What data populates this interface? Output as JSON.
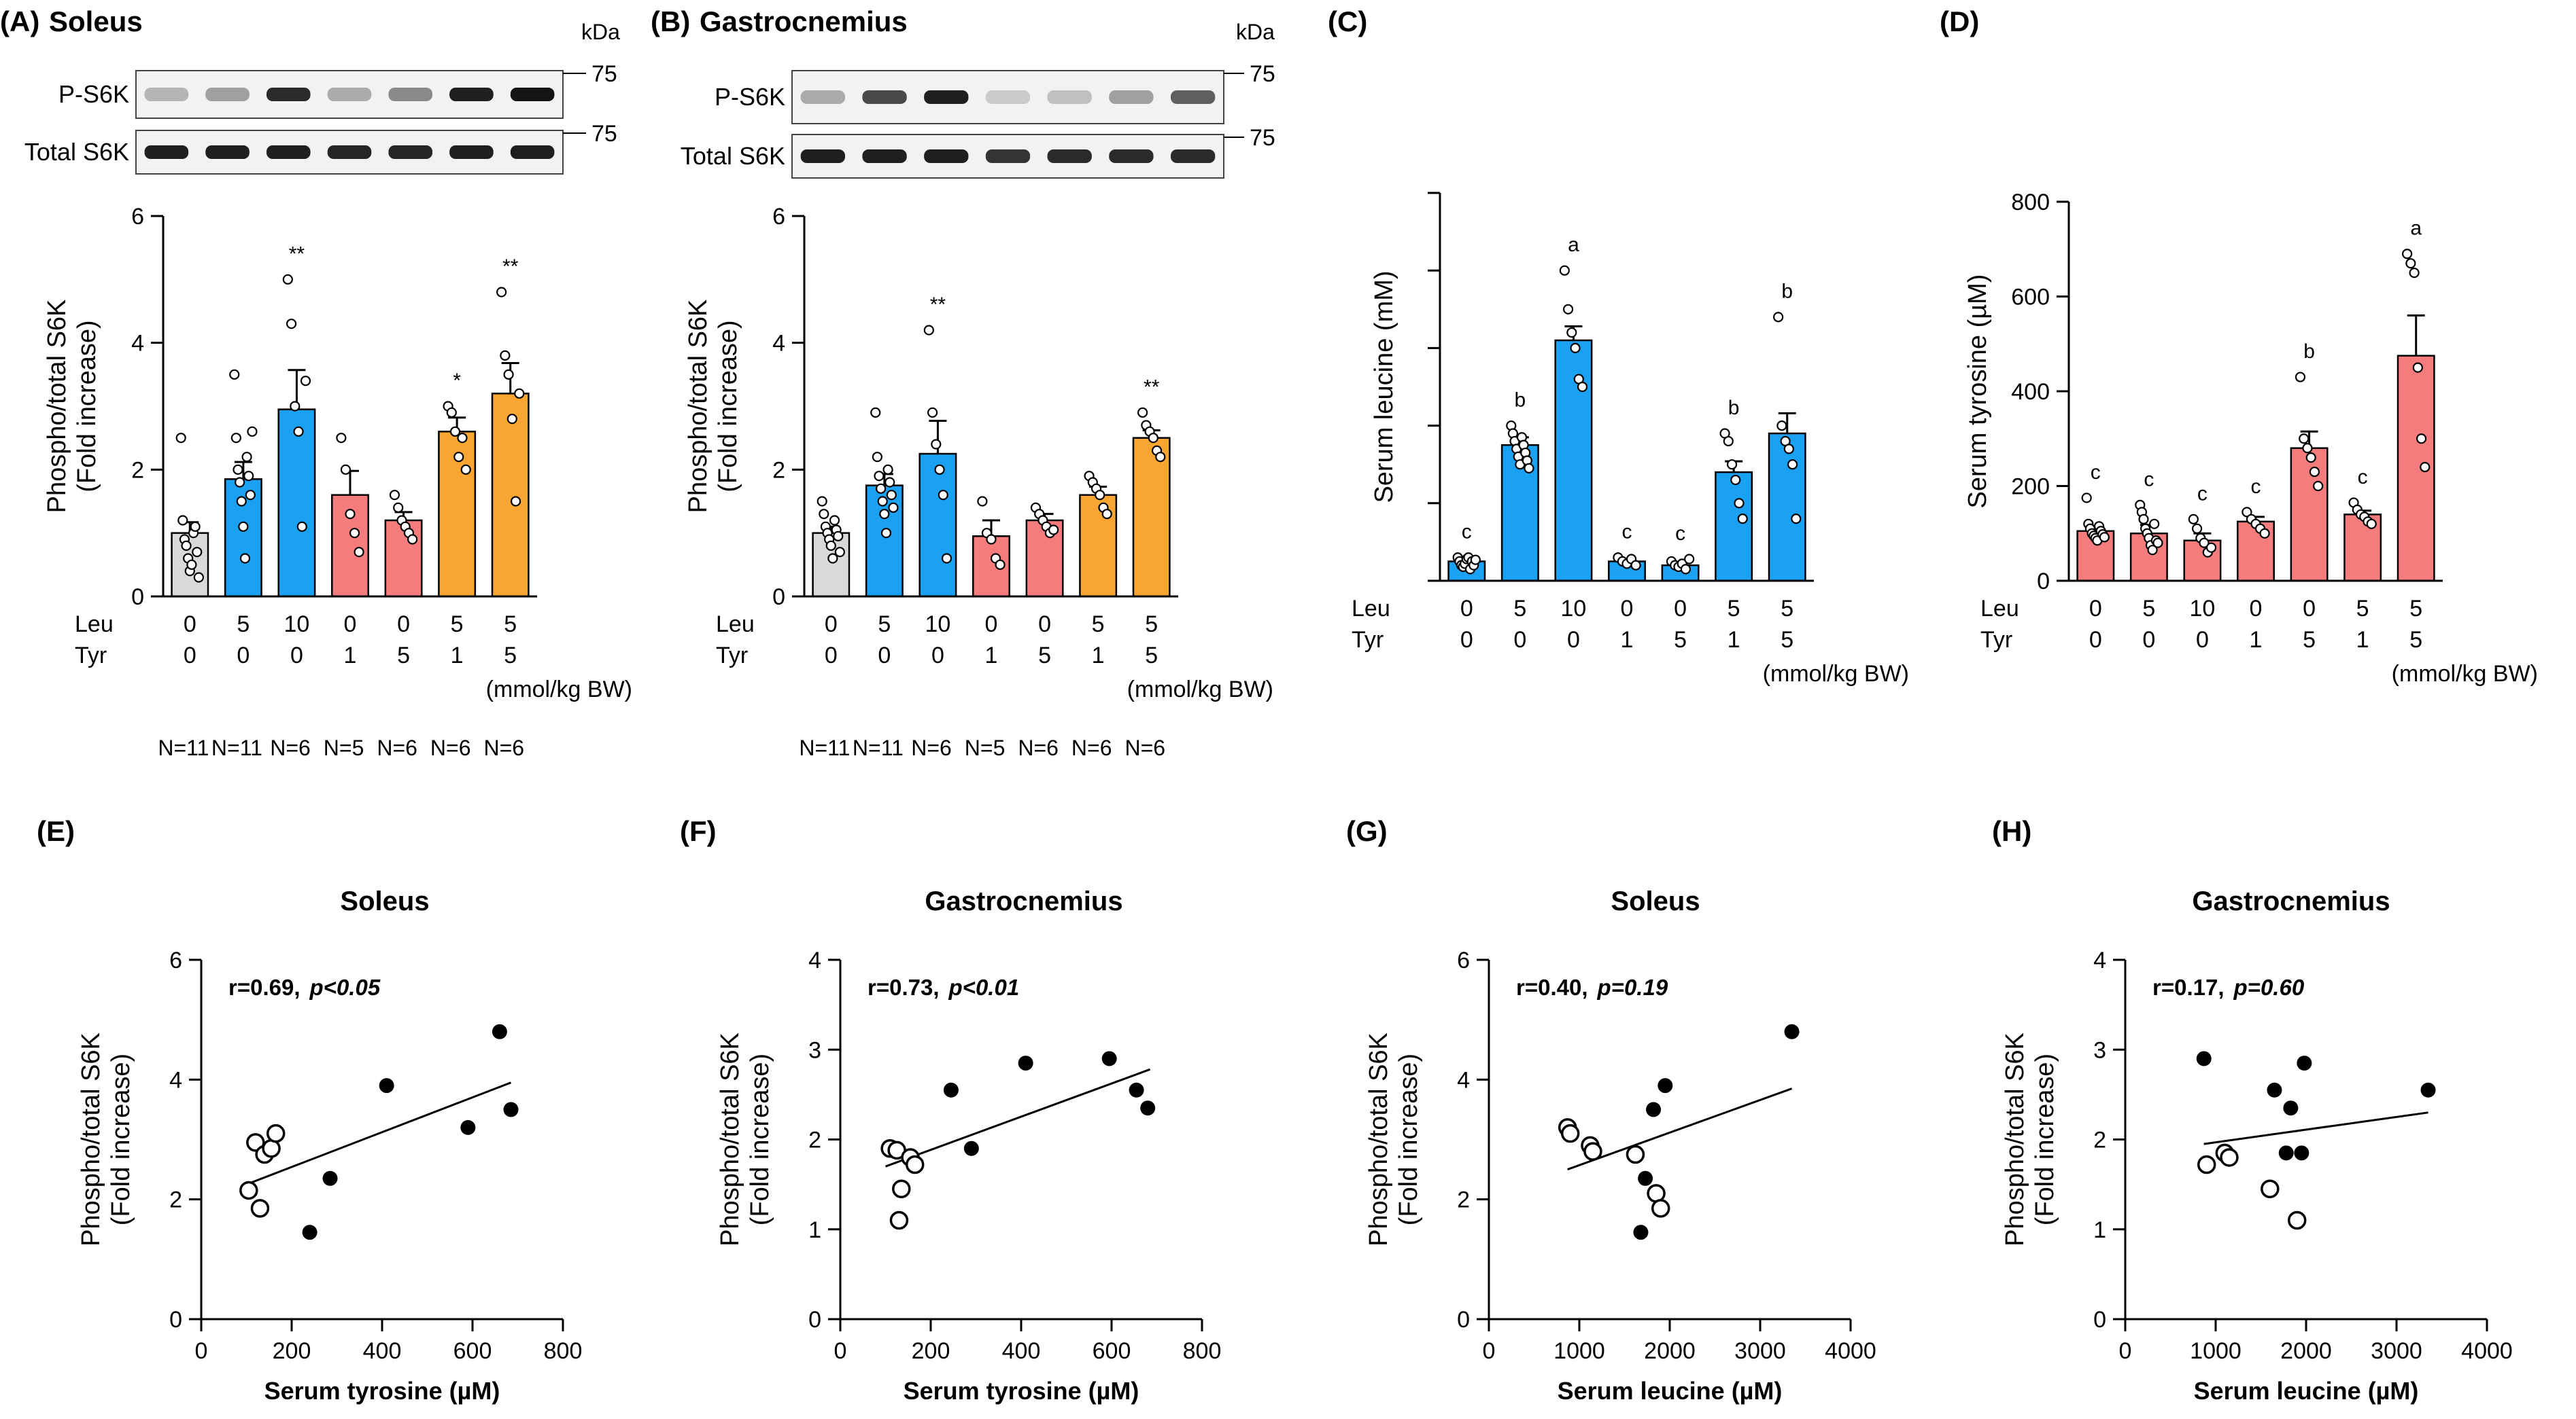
{
  "colors": {
    "gray": "#d9d9d9",
    "blue": "#1ba1f2",
    "red": "#f47c7c",
    "orange": "#f9a531",
    "ink": "#000000"
  },
  "units_label": "(mmol/kg BW)",
  "blots": [
    {
      "panel": "A",
      "kda_label": "kDa",
      "rows": [
        {
          "label": "P-S6K",
          "marker": "75",
          "intensity": [
            0.25,
            0.35,
            0.9,
            0.3,
            0.45,
            0.95,
            1.0
          ]
        },
        {
          "label": "Total S6K",
          "marker": "75",
          "intensity": [
            0.95,
            0.95,
            0.95,
            0.92,
            0.92,
            0.95,
            0.95
          ]
        }
      ]
    },
    {
      "panel": "B",
      "kda_label": "kDa",
      "rows": [
        {
          "label": "P-S6K",
          "marker": "75",
          "intensity": [
            0.3,
            0.75,
            0.95,
            0.15,
            0.2,
            0.35,
            0.65
          ]
        },
        {
          "label": "Total S6K",
          "marker": "75",
          "intensity": [
            0.95,
            0.95,
            0.95,
            0.85,
            0.9,
            0.9,
            0.9
          ]
        }
      ]
    }
  ],
  "chart_data": [
    {
      "id": "A",
      "panel_label": "(A)",
      "title": "Soleus",
      "type": "bar",
      "ylabel": [
        "Phospho/total S6K",
        "(Fold increase)"
      ],
      "ylim": [
        0,
        6
      ],
      "yticks": [
        0,
        2,
        4,
        6
      ],
      "show_tick_labels": true,
      "leu": [
        "0",
        "5",
        "10",
        "0",
        "0",
        "5",
        "5"
      ],
      "tyr": [
        "0",
        "0",
        "0",
        "1",
        "5",
        "1",
        "5"
      ],
      "n_labels": [
        "N=11",
        "N=11",
        "N=6",
        "N=5",
        "N=6",
        "N=6",
        "N=6"
      ],
      "values": [
        1.0,
        1.85,
        2.95,
        1.6,
        1.2,
        2.6,
        3.2
      ],
      "errors": [
        0.17,
        0.27,
        0.62,
        0.38,
        0.13,
        0.22,
        0.48
      ],
      "colors": [
        "gray",
        "blue",
        "blue",
        "red",
        "red",
        "orange",
        "orange"
      ],
      "annotations": [
        "",
        "",
        "**",
        "",
        "",
        "*",
        "**"
      ],
      "points": [
        [
          2.5,
          1.2,
          0.9,
          0.8,
          0.6,
          0.4,
          0.5,
          1.0,
          1.1,
          0.7,
          0.3
        ],
        [
          3.5,
          2.5,
          2.0,
          1.8,
          1.5,
          1.1,
          0.6,
          2.2,
          1.9,
          1.6,
          2.6
        ],
        [
          5.0,
          4.3,
          3.0,
          2.6,
          1.1,
          3.4
        ],
        [
          2.5,
          2.0,
          1.3,
          1.0,
          0.7
        ],
        [
          1.6,
          1.4,
          1.2,
          1.1,
          1.0,
          0.9
        ],
        [
          3.0,
          2.9,
          2.6,
          2.2,
          2.5,
          2.0
        ],
        [
          4.8,
          3.8,
          3.5,
          2.8,
          1.5,
          3.2
        ]
      ]
    },
    {
      "id": "B",
      "panel_label": "(B)",
      "title": "Gastrocnemius",
      "type": "bar",
      "ylabel": [
        "Phospho/total S6K",
        "(Fold increase)"
      ],
      "ylim": [
        0,
        6
      ],
      "yticks": [
        0,
        2,
        4,
        6
      ],
      "show_tick_labels": true,
      "leu": [
        "0",
        "5",
        "10",
        "0",
        "0",
        "5",
        "5"
      ],
      "tyr": [
        "0",
        "0",
        "0",
        "1",
        "5",
        "1",
        "5"
      ],
      "n_labels": [
        "N=11",
        "N=11",
        "N=6",
        "N=5",
        "N=6",
        "N=6",
        "N=6"
      ],
      "values": [
        1.0,
        1.75,
        2.25,
        0.95,
        1.2,
        1.6,
        2.5
      ],
      "errors": [
        0.1,
        0.18,
        0.52,
        0.25,
        0.1,
        0.13,
        0.12
      ],
      "colors": [
        "gray",
        "blue",
        "blue",
        "red",
        "red",
        "orange",
        "orange"
      ],
      "annotations": [
        "",
        "",
        "**",
        "",
        "",
        "",
        "**"
      ],
      "points": [
        [
          1.5,
          1.3,
          1.1,
          1.0,
          0.9,
          0.8,
          0.6,
          1.2,
          1.05,
          0.95,
          0.7
        ],
        [
          2.9,
          2.2,
          1.9,
          1.7,
          1.5,
          1.3,
          1.0,
          2.0,
          1.8,
          1.6,
          1.4
        ],
        [
          4.2,
          2.9,
          2.4,
          2.0,
          1.6,
          0.6
        ],
        [
          1.5,
          1.0,
          0.9,
          0.6,
          0.5
        ],
        [
          1.4,
          1.3,
          1.2,
          1.1,
          1.0,
          1.05
        ],
        [
          1.9,
          1.8,
          1.7,
          1.6,
          1.4,
          1.3
        ],
        [
          2.9,
          2.7,
          2.6,
          2.5,
          2.3,
          2.2
        ]
      ]
    },
    {
      "id": "C",
      "panel_label": "(C)",
      "title": "",
      "type": "bar",
      "ylabel": [
        "Serum leucine (mM)"
      ],
      "ylim": [
        0,
        5
      ],
      "yticks": [
        0,
        1,
        2,
        3,
        4,
        5
      ],
      "show_tick_labels": false,
      "leu": [
        "0",
        "5",
        "10",
        "0",
        "0",
        "5",
        "5"
      ],
      "tyr": [
        "0",
        "0",
        "0",
        "1",
        "5",
        "1",
        "5"
      ],
      "n_labels": [],
      "values": [
        0.25,
        1.75,
        3.1,
        0.25,
        0.2,
        1.4,
        1.9
      ],
      "errors": [
        0.04,
        0.1,
        0.18,
        0.03,
        0.03,
        0.14,
        0.26
      ],
      "colors": [
        "blue",
        "blue",
        "blue",
        "blue",
        "blue",
        "blue",
        "blue"
      ],
      "annotations": [
        "c",
        "b",
        "a",
        "c",
        "c",
        "b",
        "b"
      ],
      "points": [
        [
          0.3,
          0.25,
          0.2,
          0.18,
          0.22,
          0.28,
          0.3,
          0.15,
          0.25,
          0.2,
          0.27
        ],
        [
          2.0,
          1.9,
          1.8,
          1.7,
          1.6,
          1.5,
          1.85,
          1.75,
          1.65,
          1.55,
          1.45
        ],
        [
          4.0,
          3.5,
          3.2,
          3.0,
          2.6,
          2.5
        ],
        [
          0.3,
          0.25,
          0.22,
          0.28,
          0.2
        ],
        [
          0.25,
          0.2,
          0.18,
          0.22,
          0.15,
          0.28
        ],
        [
          1.9,
          1.8,
          1.5,
          1.3,
          1.0,
          0.8
        ],
        [
          3.4,
          2.0,
          1.8,
          1.7,
          1.5,
          0.8
        ]
      ]
    },
    {
      "id": "D",
      "panel_label": "(D)",
      "title": "",
      "type": "bar",
      "ylabel": [
        "Serum tyrosine (µM)"
      ],
      "ylim": [
        0,
        800
      ],
      "yticks": [
        0,
        200,
        400,
        600,
        800
      ],
      "show_tick_labels": true,
      "leu": [
        "0",
        "5",
        "10",
        "0",
        "0",
        "5",
        "5"
      ],
      "tyr": [
        "0",
        "0",
        "0",
        "1",
        "5",
        "1",
        "5"
      ],
      "n_labels": [],
      "values": [
        105,
        100,
        85,
        125,
        280,
        140,
        475
      ],
      "errors": [
        8,
        18,
        15,
        10,
        35,
        8,
        85
      ],
      "colors": [
        "red",
        "red",
        "red",
        "red",
        "red",
        "red",
        "red"
      ],
      "annotations": [
        "c",
        "c",
        "c",
        "c",
        "b",
        "c",
        "a"
      ],
      "points": [
        [
          175,
          120,
          110,
          100,
          95,
          90,
          85,
          115,
          105,
          98,
          92
        ],
        [
          160,
          145,
          130,
          110,
          100,
          90,
          75,
          65,
          120,
          85,
          80
        ],
        [
          130,
          110,
          90,
          80,
          60,
          70
        ],
        [
          145,
          130,
          120,
          110,
          100
        ],
        [
          430,
          300,
          280,
          260,
          230,
          200
        ],
        [
          165,
          150,
          140,
          135,
          125,
          120
        ],
        [
          690,
          670,
          650,
          450,
          300,
          240
        ]
      ]
    },
    {
      "id": "E",
      "panel_label": "(E)",
      "title": "Soleus",
      "type": "scatter",
      "xlabel": "Serum tyrosine (µM)",
      "ylabel": [
        "Phospho/total S6K",
        "(Fold increase)"
      ],
      "xlim": [
        0,
        800
      ],
      "xticks": [
        0,
        200,
        400,
        600,
        800
      ],
      "ylim": [
        0,
        6
      ],
      "yticks": [
        0,
        2,
        4,
        6
      ],
      "stat_r": "r=0.69,",
      "stat_p": "p<0.05",
      "open_points": [
        [
          105,
          2.15
        ],
        [
          120,
          2.95
        ],
        [
          130,
          1.85
        ],
        [
          140,
          2.75
        ],
        [
          155,
          2.85
        ],
        [
          165,
          3.1
        ]
      ],
      "filled_points": [
        [
          240,
          1.45
        ],
        [
          285,
          2.35
        ],
        [
          410,
          3.9
        ],
        [
          590,
          3.2
        ],
        [
          660,
          4.8
        ],
        [
          685,
          3.5
        ]
      ],
      "fit_line": [
        [
          100,
          2.25
        ],
        [
          685,
          3.95
        ]
      ]
    },
    {
      "id": "F",
      "panel_label": "(F)",
      "title": "Gastrocnemius",
      "type": "scatter",
      "xlabel": "Serum tyrosine (µM)",
      "ylabel": [
        "Phospho/total S6K",
        "(Fold increase)"
      ],
      "xlim": [
        0,
        800
      ],
      "xticks": [
        0,
        200,
        400,
        600,
        800
      ],
      "ylim": [
        0,
        4
      ],
      "yticks": [
        0,
        1,
        2,
        3,
        4
      ],
      "stat_r": "r=0.73,",
      "stat_p": "p<0.01",
      "open_points": [
        [
          110,
          1.9
        ],
        [
          125,
          1.88
        ],
        [
          130,
          1.1
        ],
        [
          135,
          1.45
        ],
        [
          155,
          1.8
        ],
        [
          165,
          1.72
        ]
      ],
      "filled_points": [
        [
          245,
          2.55
        ],
        [
          290,
          1.9
        ],
        [
          410,
          2.85
        ],
        [
          595,
          2.9
        ],
        [
          655,
          2.55
        ],
        [
          680,
          2.35
        ]
      ],
      "fit_line": [
        [
          100,
          1.7
        ],
        [
          685,
          2.78
        ]
      ]
    },
    {
      "id": "G",
      "panel_label": "(G)",
      "title": "Soleus",
      "type": "scatter",
      "xlabel": "Serum leucine (µM)",
      "ylabel": [
        "Phospho/total S6K",
        "(Fold increase)"
      ],
      "xlim": [
        0,
        4000
      ],
      "xticks": [
        0,
        1000,
        2000,
        3000,
        4000
      ],
      "ylim": [
        0,
        6
      ],
      "yticks": [
        0,
        2,
        4,
        6
      ],
      "stat_r": "r=0.40,",
      "stat_p": "p=0.19",
      "open_points": [
        [
          870,
          3.2
        ],
        [
          900,
          3.1
        ],
        [
          1120,
          2.9
        ],
        [
          1150,
          2.8
        ],
        [
          1620,
          2.75
        ],
        [
          1850,
          2.1
        ],
        [
          1900,
          1.85
        ]
      ],
      "filled_points": [
        [
          1680,
          1.45
        ],
        [
          1730,
          2.35
        ],
        [
          1820,
          3.5
        ],
        [
          1950,
          3.9
        ],
        [
          3350,
          4.8
        ]
      ],
      "fit_line": [
        [
          870,
          2.5
        ],
        [
          3350,
          3.85
        ]
      ]
    },
    {
      "id": "H",
      "panel_label": "(H)",
      "title": "Gastrocnemius",
      "type": "scatter",
      "xlabel": "Serum leucine (µM)",
      "ylabel": [
        "Phospho/total S6K",
        "(Fold increase)"
      ],
      "xlim": [
        0,
        4000
      ],
      "xticks": [
        0,
        1000,
        2000,
        3000,
        4000
      ],
      "ylim": [
        0,
        4
      ],
      "yticks": [
        0,
        1,
        2,
        3,
        4
      ],
      "stat_r": "r=0.17,",
      "stat_p": "p=0.60",
      "open_points": [
        [
          900,
          1.72
        ],
        [
          1100,
          1.85
        ],
        [
          1150,
          1.8
        ],
        [
          1600,
          1.45
        ],
        [
          1900,
          1.1
        ]
      ],
      "filled_points": [
        [
          870,
          2.9
        ],
        [
          1650,
          2.55
        ],
        [
          1780,
          1.85
        ],
        [
          1830,
          2.35
        ],
        [
          1950,
          1.85
        ],
        [
          1980,
          2.85
        ],
        [
          3350,
          2.55
        ]
      ],
      "fit_line": [
        [
          870,
          1.95
        ],
        [
          3350,
          2.3
        ]
      ]
    }
  ]
}
